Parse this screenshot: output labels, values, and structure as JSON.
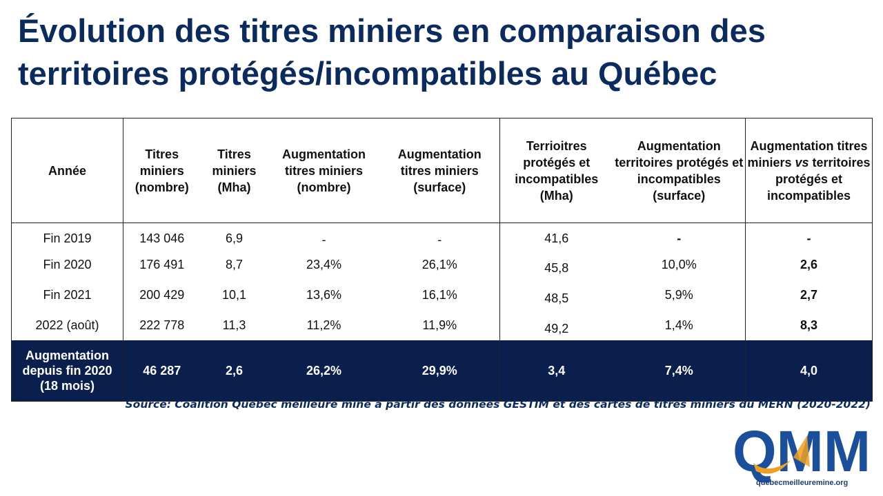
{
  "title": {
    "line1": "Évolution des titres miniers en comparaison des",
    "line2": "territoires protégés/incompatibles au Québec"
  },
  "table": {
    "headers": [
      "Année",
      "Titres miniers (nombre)",
      "Titres miniers (Mha)",
      "Augmentation titres miniers (nombre)",
      "Augmentation titres miniers (surface)",
      "Terrioitres protégés et incompatibles (Mha)",
      "Augmentation territoires protégés et incompatibles (surface)",
      "Augmentation titres miniers vs territoires protégés et incompatibles"
    ],
    "last_header": {
      "before": "Augmentation titres miniers ",
      "vs": "vs",
      "after": " territoires protégés et incompatibles"
    },
    "rows": [
      [
        "Fin 2019",
        "143 046",
        "6,9",
        "-",
        "-",
        "41,6",
        "-",
        "-"
      ],
      [
        "Fin 2020",
        "176 491",
        "8,7",
        "23,4%",
        "26,1%",
        "45,8",
        "10,0%",
        "2,6"
      ],
      [
        "Fin 2021",
        "200 429",
        "10,1",
        "13,6%",
        "16,1%",
        "48,5",
        "5,9%",
        "2,7"
      ],
      [
        "2022 (août)",
        "222 778",
        "11,3",
        "11,2%",
        "11,9%",
        "49,2",
        "1,4%",
        "8,3"
      ]
    ],
    "total": [
      "Augmentation depuis fin 2020 (18 mois)",
      "46 287",
      "2,6",
      "26,2%",
      "29,9%",
      "3,4",
      "7,4%",
      "4,0"
    ]
  },
  "source": "Source: Coalition Québec meilleure mine à partir des données GESTIM et des cartes de titres miniers du MERN (2020-2022)",
  "logo": {
    "letters": "QMM",
    "url_text": "quebecmeilleuremine.org"
  },
  "colors": {
    "navy": "#0b1f4f",
    "title": "#0b2a5e",
    "logo_blue": "#1b4f9c",
    "logo_orange": "#f0a020"
  }
}
